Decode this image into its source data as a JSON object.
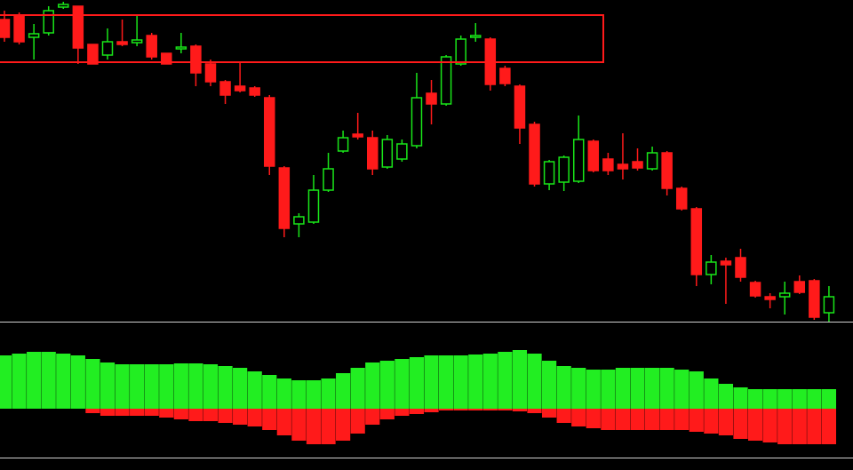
{
  "chart_data": [
    {
      "type": "candlestick",
      "up_color": "#19e619",
      "down_color": "#ff1a1a",
      "ylim": [
        0,
        360
      ],
      "open": [
        340,
        345,
        320,
        325,
        354,
        355,
        312,
        300,
        315,
        314,
        322,
        302,
        307,
        310,
        290,
        270,
        265,
        263,
        252,
        173,
        110,
        112,
        148,
        192,
        211,
        207,
        174,
        183,
        198,
        257,
        245,
        290,
        320,
        318,
        285,
        265,
        222,
        155,
        157,
        158,
        203,
        183,
        177,
        180,
        172,
        190,
        150,
        127,
        53,
        68,
        72,
        44,
        28,
        28,
        45,
        46,
        10
      ],
      "high": [
        350,
        348,
        335,
        355,
        360,
        355,
        312,
        330,
        340,
        345,
        325,
        302,
        325,
        312,
        295,
        272,
        292,
        265,
        255,
        175,
        122,
        165,
        190,
        215,
        235,
        215,
        210,
        205,
        280,
        272,
        300,
        322,
        336,
        320,
        288,
        267,
        225,
        182,
        187,
        232,
        205,
        190,
        212,
        195,
        197,
        192,
        152,
        129,
        75,
        72,
        82,
        46,
        32,
        45,
        52,
        48,
        40
      ],
      "low": [
        315,
        312,
        295,
        322,
        352,
        290,
        290,
        295,
        310,
        310,
        295,
        290,
        302,
        265,
        265,
        245,
        258,
        253,
        165,
        95,
        95,
        110,
        146,
        190,
        205,
        165,
        172,
        180,
        195,
        222,
        243,
        288,
        315,
        260,
        265,
        200,
        152,
        148,
        147,
        156,
        168,
        165,
        160,
        170,
        170,
        142,
        125,
        40,
        42,
        20,
        45,
        27,
        15,
        8,
        31,
        2,
        0
      ],
      "close": [
        320,
        315,
        324,
        350,
        357,
        308,
        290,
        315,
        312,
        317,
        298,
        290,
        309,
        280,
        270,
        255,
        260,
        255,
        175,
        105,
        118,
        148,
        172,
        207,
        208,
        172,
        205,
        200,
        252,
        245,
        298,
        318,
        322,
        267,
        268,
        218,
        155,
        180,
        185,
        205,
        170,
        170,
        172,
        173,
        190,
        150,
        127,
        53,
        67,
        64,
        50,
        29,
        25,
        32,
        33,
        5,
        28
      ]
    },
    {
      "type": "bar",
      "ylim": [
        -55,
        97
      ],
      "series": [
        {
          "color": "#22ee22",
          "values": [
            60,
            62,
            64,
            64,
            62,
            60,
            56,
            52,
            50,
            50,
            50,
            50,
            51,
            51,
            50,
            48,
            46,
            42,
            38,
            34,
            32,
            32,
            34,
            40,
            46,
            52,
            54,
            56,
            58,
            60,
            60,
            60,
            61,
            62,
            64,
            66,
            62,
            54,
            48,
            46,
            44,
            44,
            46,
            46,
            46,
            46,
            44,
            42,
            34,
            28,
            24,
            22,
            22,
            22,
            22,
            22,
            22
          ]
        },
        {
          "color": "#ff1a1a",
          "values": [
            0,
            0,
            0,
            0,
            0,
            0,
            -5,
            -8,
            -8,
            -8,
            -8,
            -10,
            -12,
            -14,
            -14,
            -16,
            -18,
            -20,
            -24,
            -30,
            -36,
            -40,
            -40,
            -36,
            -28,
            -18,
            -12,
            -8,
            -6,
            -4,
            -2,
            -2,
            -2,
            -2,
            -2,
            -3,
            -5,
            -10,
            -16,
            -20,
            -22,
            -24,
            -24,
            -24,
            -24,
            -24,
            -24,
            -26,
            -28,
            -30,
            -34,
            -36,
            -38,
            -40,
            -40,
            -40,
            -40
          ]
        }
      ]
    }
  ]
}
